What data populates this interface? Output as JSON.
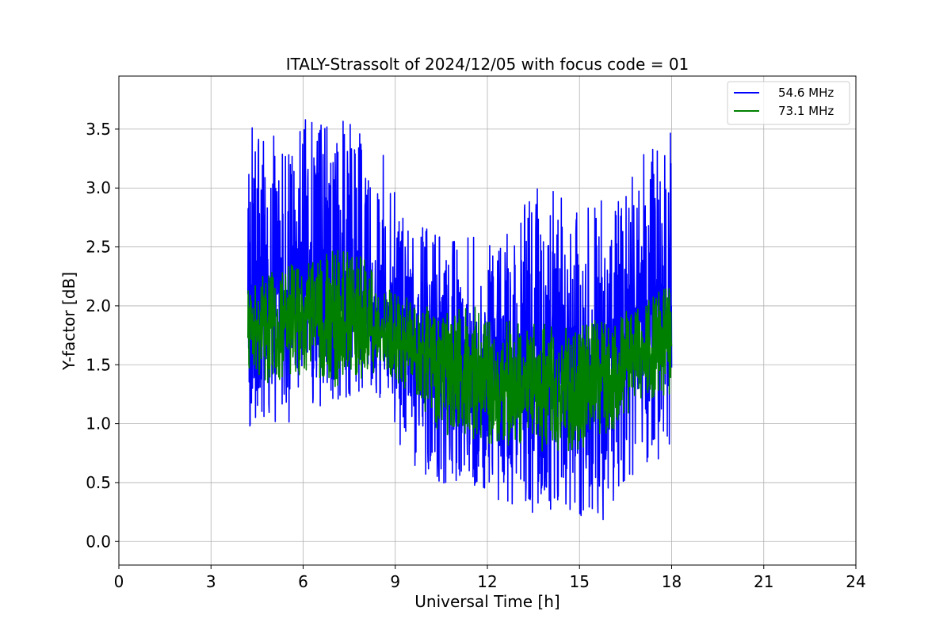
{
  "chart_data": {
    "type": "line",
    "title": "ITALY-Strassolt of 2024/12/05 with focus code = 01",
    "xlabel": "Universal Time [h]",
    "ylabel": "Y-factor [dB]",
    "xlim": [
      0,
      24
    ],
    "ylim": [
      -0.2,
      3.95
    ],
    "xticks": [
      "0",
      "3",
      "6",
      "9",
      "12",
      "15",
      "18",
      "21",
      "24"
    ],
    "yticks": [
      "0.0",
      "0.5",
      "1.0",
      "1.5",
      "2.0",
      "2.5",
      "3.0",
      "3.5"
    ],
    "grid": true,
    "legend_position": "top-right",
    "x_range_of_data": [
      4.2,
      18.0
    ],
    "series": [
      {
        "name": "54.6 MHz",
        "color": "#0000ff",
        "samples_per_hour": 120,
        "envelope": [
          {
            "x": 4.2,
            "low": 0.9,
            "mid": 2.1,
            "high": 3.6
          },
          {
            "x": 5.0,
            "low": 0.95,
            "mid": 2.1,
            "high": 3.6
          },
          {
            "x": 6.0,
            "low": 1.05,
            "mid": 2.1,
            "high": 3.6
          },
          {
            "x": 7.0,
            "low": 1.2,
            "mid": 2.1,
            "high": 3.65
          },
          {
            "x": 8.0,
            "low": 1.25,
            "mid": 2.05,
            "high": 3.5
          },
          {
            "x": 8.6,
            "low": 1.2,
            "mid": 1.95,
            "high": 3.3
          },
          {
            "x": 9.0,
            "low": 0.9,
            "mid": 1.8,
            "high": 3.0
          },
          {
            "x": 9.6,
            "low": 0.6,
            "mid": 1.7,
            "high": 2.7
          },
          {
            "x": 10.5,
            "low": 0.5,
            "mid": 1.6,
            "high": 2.6
          },
          {
            "x": 11.9,
            "low": 0.4,
            "mid": 1.55,
            "high": 2.6
          },
          {
            "x": 12.2,
            "low": 0.3,
            "mid": 1.4,
            "high": 2.5
          },
          {
            "x": 13.5,
            "low": 0.2,
            "mid": 1.6,
            "high": 3.0
          },
          {
            "x": 15.0,
            "low": 0.2,
            "mid": 1.6,
            "high": 3.0
          },
          {
            "x": 16.0,
            "low": 0.15,
            "mid": 1.55,
            "high": 2.9
          },
          {
            "x": 17.0,
            "low": 0.6,
            "mid": 1.9,
            "high": 3.3
          },
          {
            "x": 18.0,
            "low": 0.75,
            "mid": 2.0,
            "high": 3.6
          }
        ]
      },
      {
        "name": "73.1 MHz",
        "color": "#008000",
        "samples_per_hour": 120,
        "envelope": [
          {
            "x": 4.2,
            "low": 1.3,
            "mid": 1.8,
            "high": 2.3
          },
          {
            "x": 5.0,
            "low": 1.35,
            "mid": 1.85,
            "high": 2.3
          },
          {
            "x": 6.0,
            "low": 1.4,
            "mid": 1.9,
            "high": 2.4
          },
          {
            "x": 7.0,
            "low": 1.3,
            "mid": 1.85,
            "high": 2.5
          },
          {
            "x": 8.0,
            "low": 1.35,
            "mid": 1.8,
            "high": 2.45
          },
          {
            "x": 8.6,
            "low": 1.45,
            "mid": 1.75,
            "high": 2.1
          },
          {
            "x": 9.0,
            "low": 1.35,
            "mid": 1.7,
            "high": 2.2
          },
          {
            "x": 9.6,
            "low": 1.25,
            "mid": 1.65,
            "high": 2.0
          },
          {
            "x": 10.5,
            "low": 0.9,
            "mid": 1.5,
            "high": 2.0
          },
          {
            "x": 11.9,
            "low": 0.85,
            "mid": 1.45,
            "high": 2.0
          },
          {
            "x": 12.2,
            "low": 0.8,
            "mid": 1.3,
            "high": 1.9
          },
          {
            "x": 13.5,
            "low": 0.75,
            "mid": 1.3,
            "high": 1.85
          },
          {
            "x": 15.0,
            "low": 0.75,
            "mid": 1.35,
            "high": 1.85
          },
          {
            "x": 16.0,
            "low": 0.9,
            "mid": 1.4,
            "high": 1.9
          },
          {
            "x": 17.0,
            "low": 1.2,
            "mid": 1.6,
            "high": 2.0
          },
          {
            "x": 18.0,
            "low": 1.25,
            "mid": 1.7,
            "high": 2.2
          }
        ]
      }
    ]
  }
}
